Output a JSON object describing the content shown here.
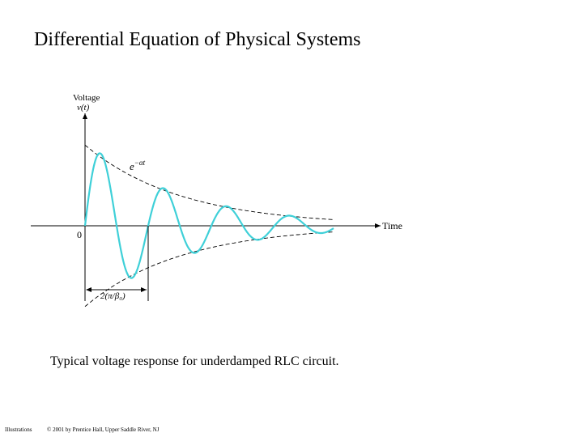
{
  "title": "Differential Equation of Physical Systems",
  "figure": {
    "y_axis_label": "Voltage",
    "y_axis_symbol": "v(t)",
    "x_axis_label": "Time",
    "origin_label": "0",
    "envelope_base": "e",
    "envelope_exponent": "−αt",
    "period_label": "2(π/β₀)",
    "caption": "Typical voltage response for underdamped RLC circuit."
  },
  "footer": {
    "left": "Illustrations",
    "copyright": "© 2001 by Prentice Hall, Upper Saddle River, NJ"
  }
}
